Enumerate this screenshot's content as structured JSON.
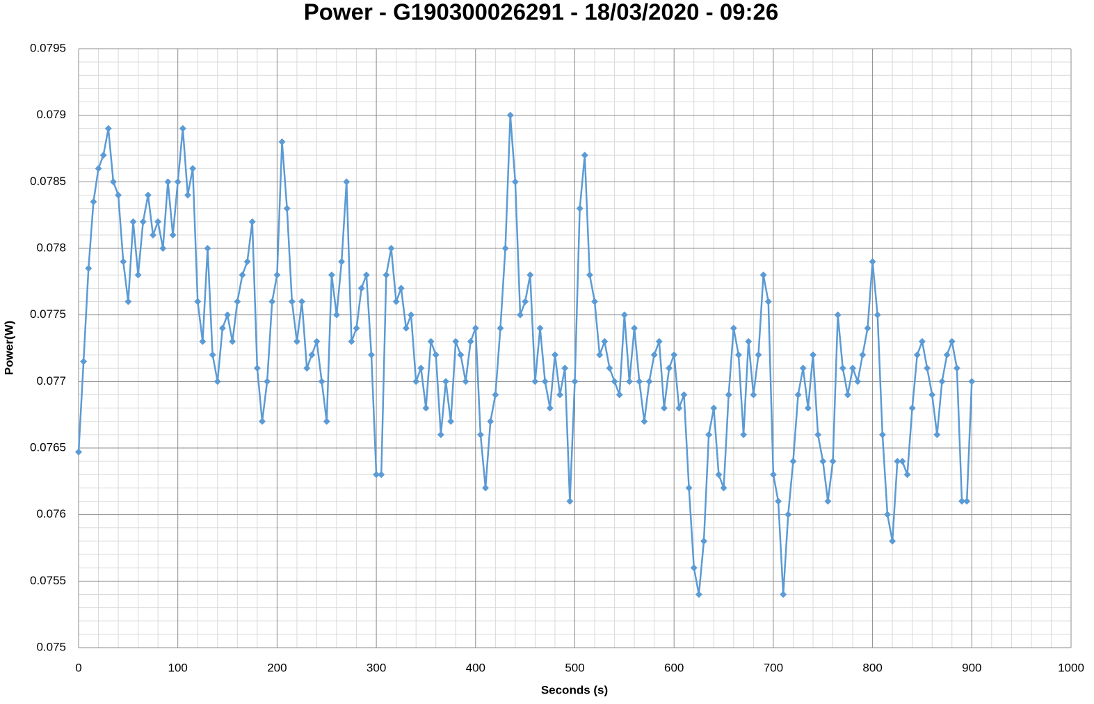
{
  "chart_data": {
    "type": "line",
    "title": "Power - G190300026291 - 18/03/2020 - 09:26",
    "x_label": "Seconds (s)",
    "y_label": "Power(W)",
    "color": "#5b9bd5",
    "grid": true,
    "minor_divisions": 5,
    "xlim": [
      0,
      1000
    ],
    "xticks": [
      0,
      100,
      200,
      300,
      400,
      500,
      600,
      700,
      800,
      900,
      1000
    ],
    "ylim": [
      0.075,
      0.0795
    ],
    "yticks": [
      0.075,
      0.0755,
      0.076,
      0.0765,
      0.077,
      0.0775,
      0.078,
      0.0785,
      0.079,
      0.0795
    ],
    "x": [
      0,
      5,
      10,
      15,
      20,
      25,
      30,
      35,
      40,
      45,
      50,
      55,
      60,
      65,
      70,
      75,
      80,
      85,
      90,
      95,
      100,
      105,
      110,
      115,
      120,
      125,
      130,
      135,
      140,
      145,
      150,
      155,
      160,
      165,
      170,
      175,
      180,
      185,
      190,
      195,
      200,
      205,
      210,
      215,
      220,
      225,
      230,
      235,
      240,
      245,
      250,
      255,
      260,
      265,
      270,
      275,
      280,
      285,
      290,
      295,
      300,
      305,
      310,
      315,
      320,
      325,
      330,
      335,
      340,
      345,
      350,
      355,
      360,
      365,
      370,
      375,
      380,
      385,
      390,
      395,
      400,
      405,
      410,
      415,
      420,
      425,
      430,
      435,
      440,
      445,
      450,
      455,
      460,
      465,
      470,
      475,
      480,
      485,
      490,
      495,
      500,
      505,
      510,
      515,
      520,
      525,
      530,
      535,
      540,
      545,
      550,
      555,
      560,
      565,
      570,
      575,
      580,
      585,
      590,
      595,
      600,
      605,
      610,
      615,
      620,
      625,
      630,
      635,
      640,
      645,
      650,
      655,
      660,
      665,
      670,
      675,
      680,
      685,
      690,
      695,
      700,
      705,
      710,
      715,
      720,
      725,
      730,
      735,
      740,
      745,
      750,
      755,
      760,
      765,
      770,
      775,
      780,
      785,
      790,
      795,
      800,
      805,
      810,
      815,
      820,
      825,
      830,
      835,
      840,
      845,
      850,
      855,
      860,
      865,
      870,
      875,
      880,
      885,
      890,
      895,
      900
    ],
    "values": [
      0.07647,
      0.07715,
      0.07785,
      0.07835,
      0.0786,
      0.0787,
      0.0789,
      0.0785,
      0.0784,
      0.0779,
      0.0776,
      0.0782,
      0.0778,
      0.0782,
      0.0784,
      0.0781,
      0.0782,
      0.078,
      0.0785,
      0.0781,
      0.0785,
      0.0789,
      0.0784,
      0.0786,
      0.0776,
      0.0773,
      0.078,
      0.0772,
      0.077,
      0.0774,
      0.0775,
      0.0773,
      0.0776,
      0.0778,
      0.0779,
      0.0782,
      0.0771,
      0.0767,
      0.077,
      0.0776,
      0.0778,
      0.0788,
      0.0783,
      0.0776,
      0.0773,
      0.0776,
      0.0771,
      0.0772,
      0.0773,
      0.077,
      0.0767,
      0.0778,
      0.0775,
      0.0779,
      0.0785,
      0.0773,
      0.0774,
      0.0777,
      0.0778,
      0.0772,
      0.0763,
      0.0763,
      0.0778,
      0.078,
      0.0776,
      0.0777,
      0.0774,
      0.0775,
      0.077,
      0.0771,
      0.0768,
      0.0773,
      0.0772,
      0.0766,
      0.077,
      0.0767,
      0.0773,
      0.0772,
      0.077,
      0.0773,
      0.0774,
      0.0766,
      0.0762,
      0.0767,
      0.0769,
      0.0774,
      0.078,
      0.079,
      0.0785,
      0.0775,
      0.0776,
      0.0778,
      0.077,
      0.0774,
      0.077,
      0.0768,
      0.0772,
      0.0769,
      0.0771,
      0.0761,
      0.077,
      0.0783,
      0.0787,
      0.0778,
      0.0776,
      0.0772,
      0.0773,
      0.0771,
      0.077,
      0.0769,
      0.0775,
      0.077,
      0.0774,
      0.077,
      0.0767,
      0.077,
      0.0772,
      0.0773,
      0.0768,
      0.0771,
      0.0772,
      0.0768,
      0.0769,
      0.0762,
      0.0756,
      0.0754,
      0.0758,
      0.0766,
      0.0768,
      0.0763,
      0.0762,
      0.0769,
      0.0774,
      0.0772,
      0.0766,
      0.0773,
      0.0769,
      0.0772,
      0.0778,
      0.0776,
      0.0763,
      0.0761,
      0.0754,
      0.076,
      0.0764,
      0.0769,
      0.0771,
      0.0768,
      0.0772,
      0.0766,
      0.0764,
      0.0761,
      0.0764,
      0.0775,
      0.0771,
      0.0769,
      0.0771,
      0.077,
      0.0772,
      0.0774,
      0.0779,
      0.0775,
      0.0766,
      0.076,
      0.0758,
      0.0764,
      0.0764,
      0.0763,
      0.0768,
      0.0772,
      0.0773,
      0.0771,
      0.0769,
      0.0766,
      0.077,
      0.0772,
      0.0773,
      0.0771,
      0.0761,
      0.0761,
      0.077
    ]
  }
}
